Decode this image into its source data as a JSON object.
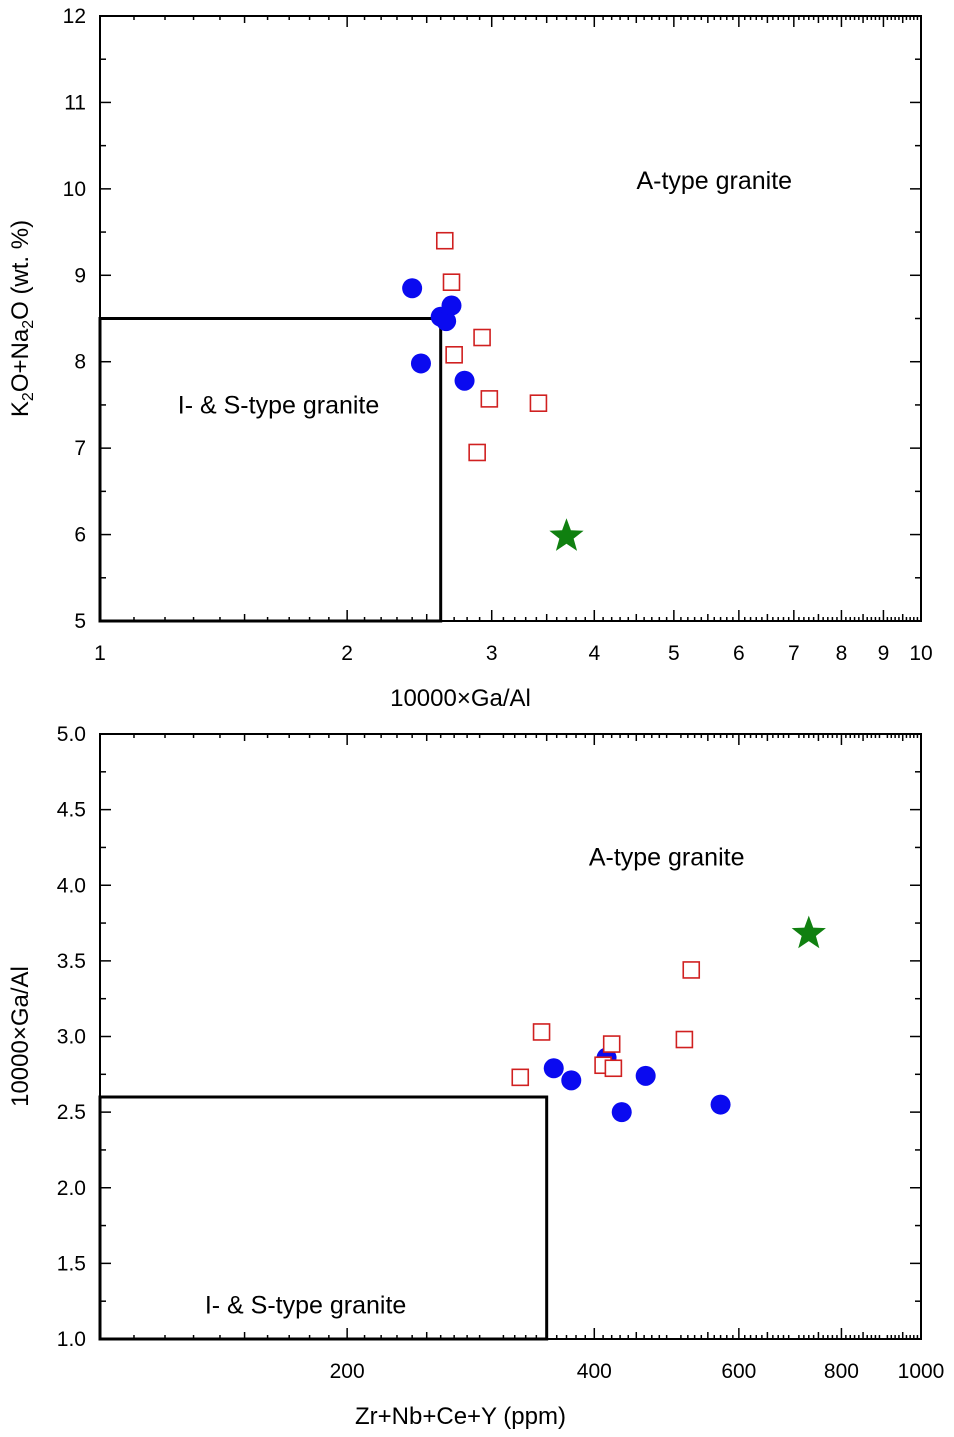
{
  "chart_data": [
    {
      "type": "scatter",
      "x_scale": "log",
      "xlim": [
        1,
        10
      ],
      "ylim": [
        5,
        12
      ],
      "xlabel": "10000×Ga/Al",
      "ylabel_parts": [
        "K",
        "2",
        "O+Na",
        "2",
        "O (wt. %)"
      ],
      "x_tick_labels": [
        "1",
        "2",
        "3",
        "4",
        "5",
        "6",
        "7",
        "8",
        "9",
        "10"
      ],
      "x_tick_values": [
        1,
        2,
        3,
        4,
        5,
        6,
        7,
        8,
        9,
        10
      ],
      "y_tick_labels": [
        "5",
        "6",
        "7",
        "8",
        "9",
        "10",
        "11",
        "12"
      ],
      "y_tick_values": [
        5,
        6,
        7,
        8,
        9,
        10,
        11,
        12
      ],
      "regions": [
        {
          "label": "A-type granite",
          "at": [
            5.6,
            10.0
          ]
        },
        {
          "label": "I- & S-type granite",
          "at": [
            1.65,
            7.4
          ],
          "box": {
            "x": [
              1,
              2.6
            ],
            "y": [
              5,
              8.5
            ]
          }
        }
      ],
      "series": [
        {
          "marker": "filled-circle",
          "color": "#0a0af0",
          "points": [
            [
              2.4,
              8.85
            ],
            [
              2.6,
              8.52
            ],
            [
              2.64,
              8.47
            ],
            [
              2.68,
              8.65
            ],
            [
              2.46,
              7.98
            ],
            [
              2.78,
              7.78
            ]
          ]
        },
        {
          "marker": "open-square",
          "color": "#d02020",
          "points": [
            [
              2.63,
              9.4
            ],
            [
              2.68,
              8.92
            ],
            [
              2.92,
              8.28
            ],
            [
              2.7,
              8.08
            ],
            [
              2.98,
              7.57
            ],
            [
              3.42,
              7.52
            ],
            [
              2.88,
              6.95
            ]
          ]
        },
        {
          "marker": "star",
          "color": "#108010",
          "points": [
            [
              3.7,
              5.98
            ]
          ]
        }
      ]
    },
    {
      "type": "scatter",
      "x_scale": "log",
      "xlim": [
        100,
        1000
      ],
      "ylim": [
        1.0,
        5.0
      ],
      "xlabel": "Zr+Nb+Ce+Y (ppm)",
      "ylabel": "10000×Ga/Al",
      "x_tick_labels": [
        "200",
        "400",
        "600",
        "800",
        "1000"
      ],
      "x_tick_values": [
        200,
        400,
        600,
        800,
        1000
      ],
      "y_tick_labels": [
        "1.0",
        "1.5",
        "2.0",
        "2.5",
        "3.0",
        "3.5",
        "4.0",
        "4.5",
        "5.0"
      ],
      "y_tick_values": [
        1.0,
        1.5,
        2.0,
        2.5,
        3.0,
        3.5,
        4.0,
        4.5,
        5.0
      ],
      "regions": [
        {
          "label": "A-type granite",
          "at": [
            490,
            4.13
          ]
        },
        {
          "label": "I- & S-type granite",
          "at": [
            178,
            1.17
          ],
          "box": {
            "x": [
              100,
              350
            ],
            "y": [
              1.0,
              2.6
            ]
          }
        }
      ],
      "series": [
        {
          "marker": "filled-circle",
          "color": "#0a0af0",
          "points": [
            [
              357,
              2.79
            ],
            [
              375,
              2.71
            ],
            [
              414,
              2.86
            ],
            [
              432,
              2.5
            ],
            [
              462,
              2.74
            ],
            [
              570,
              2.55
            ]
          ]
        },
        {
          "marker": "open-square",
          "color": "#d02020",
          "points": [
            [
              345,
              3.03
            ],
            [
              325,
              2.73
            ],
            [
              410,
              2.81
            ],
            [
              420,
              2.95
            ],
            [
              422,
              2.79
            ],
            [
              515,
              2.98
            ],
            [
              525,
              3.44
            ]
          ]
        },
        {
          "marker": "star",
          "color": "#108010",
          "points": [
            [
              730,
              3.68
            ]
          ]
        }
      ]
    }
  ]
}
